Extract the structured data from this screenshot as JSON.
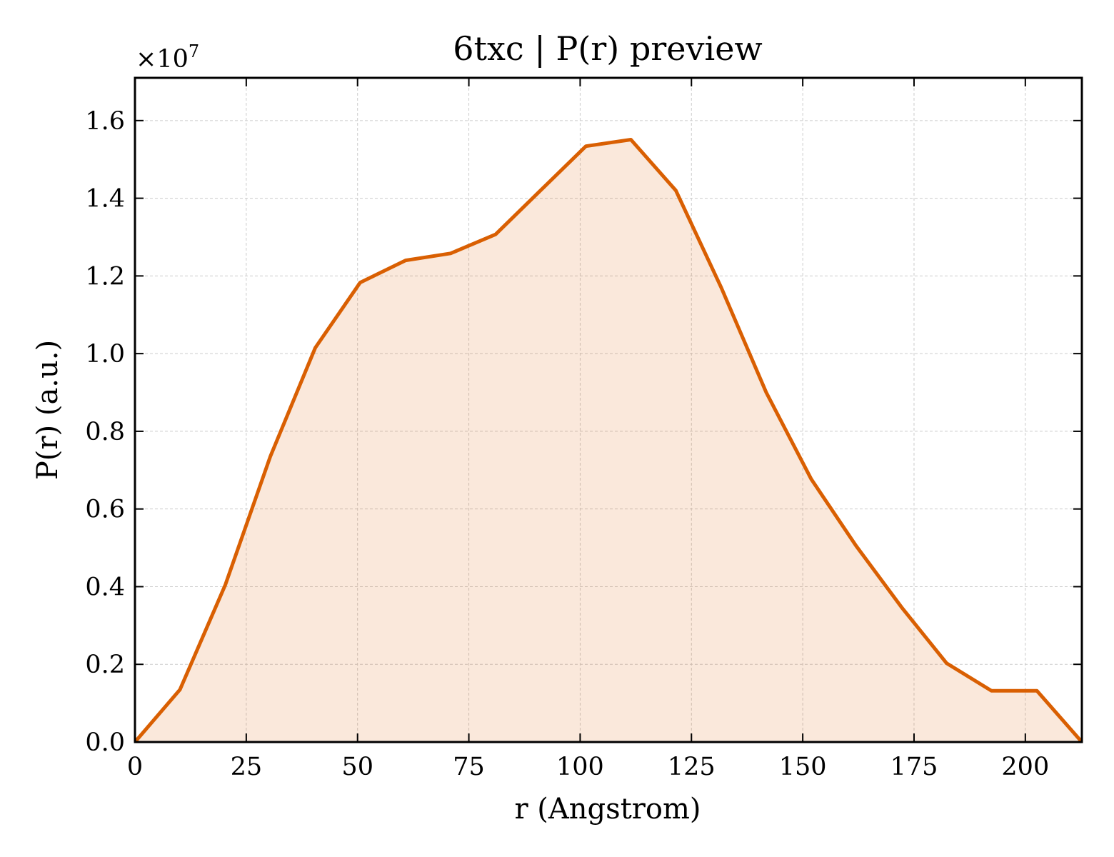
{
  "chart_data": {
    "type": "area",
    "title": "6txc | P(r) preview",
    "xlabel": "r (Angstrom)",
    "ylabel": "P(r) (a.u.)",
    "y_multiplier_text": "×10",
    "y_multiplier_exponent": "7",
    "xlim": [
      0,
      212.7
    ],
    "ylim": [
      0,
      1.71
    ],
    "x_ticks": [
      0,
      25,
      50,
      75,
      100,
      125,
      150,
      175,
      200
    ],
    "x_tick_labels": [
      "0",
      "25",
      "50",
      "75",
      "100",
      "125",
      "150",
      "175",
      "200"
    ],
    "y_ticks": [
      0.0,
      0.2,
      0.4,
      0.6,
      0.8,
      1.0,
      1.2,
      1.4,
      1.6
    ],
    "y_tick_labels": [
      "0.0",
      "0.2",
      "0.4",
      "0.6",
      "0.8",
      "1.0",
      "1.2",
      "1.4",
      "1.6"
    ],
    "grid": true,
    "line_color": "#d95f02",
    "fill_color": "#d95f02",
    "series": [
      {
        "x": [
          0,
          10.1,
          20.3,
          30.4,
          40.5,
          50.6,
          60.8,
          70.9,
          81.0,
          91.1,
          101.3,
          111.4,
          121.5,
          131.7,
          141.8,
          151.9,
          162.0,
          172.2,
          182.3,
          192.4,
          202.6,
          212.7
        ],
        "y": [
          0.0,
          0.135,
          0.405,
          0.735,
          1.015,
          1.183,
          1.24,
          1.258,
          1.307,
          1.42,
          1.534,
          1.551,
          1.42,
          1.17,
          0.9,
          0.677,
          0.505,
          0.347,
          0.203,
          0.132,
          0.132,
          0.0
        ]
      }
    ]
  }
}
